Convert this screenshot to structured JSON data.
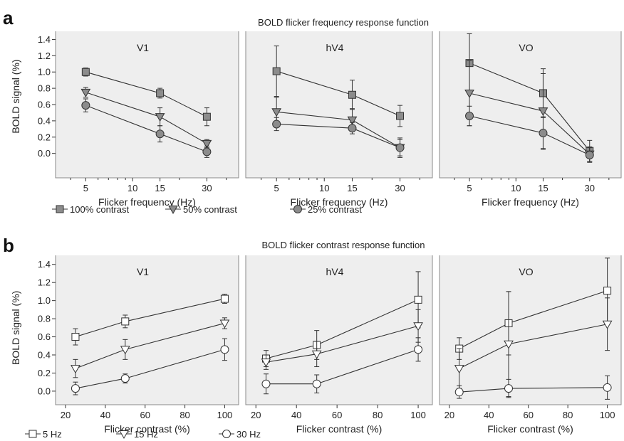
{
  "figure": {
    "panel_a_letter": "a",
    "panel_b_letter": "b",
    "panel_a_title": "BOLD flicker frequency response function",
    "panel_b_title": "BOLD flicker contrast response function"
  },
  "colors": {
    "plot_bg": "#eeeeee",
    "frame": "#8a8a8a",
    "line": "#333333",
    "filled_marker": "#8c8c8c",
    "open_marker": "#ffffff"
  },
  "chart_data": [
    {
      "type": "line",
      "panel": "a",
      "subtitle": "V1",
      "xlabel": "Flicker frequency (Hz)",
      "ylabel": "BOLD signal (%)",
      "x_scale": "log",
      "xlim": [
        3.2,
        48
      ],
      "ylim": [
        -0.3,
        1.5
      ],
      "xticks": [
        5,
        10,
        15,
        30
      ],
      "yticks": [
        0.0,
        0.2,
        0.4,
        0.6,
        0.8,
        1.0,
        1.2,
        1.4
      ],
      "x": [
        5,
        15,
        30
      ],
      "series": [
        {
          "name": "100% contrast",
          "marker": "square-filled",
          "values": [
            1.0,
            0.74,
            0.45
          ],
          "errors": [
            0.05,
            0.06,
            0.11
          ]
        },
        {
          "name": "50% contrast",
          "marker": "triangle-filled",
          "values": [
            0.75,
            0.45,
            0.12
          ],
          "errors": [
            0.06,
            0.11,
            0.05
          ]
        },
        {
          "name": "25% contrast",
          "marker": "circle-filled",
          "values": [
            0.59,
            0.24,
            0.02
          ],
          "errors": [
            0.08,
            0.1,
            0.07
          ]
        }
      ]
    },
    {
      "type": "line",
      "panel": "a",
      "subtitle": "hV4",
      "xlabel": "Flicker frequency (Hz)",
      "ylabel": "",
      "x_scale": "log",
      "xlim": [
        3.2,
        48
      ],
      "ylim": [
        -0.3,
        1.5
      ],
      "xticks": [
        5,
        10,
        15,
        30
      ],
      "x": [
        5,
        15,
        30
      ],
      "series": [
        {
          "name": "100% contrast",
          "marker": "square-filled",
          "values": [
            1.01,
            0.72,
            0.46
          ],
          "errors": [
            0.31,
            0.18,
            0.13
          ]
        },
        {
          "name": "50% contrast",
          "marker": "triangle-filled",
          "values": [
            0.51,
            0.41,
            0.07
          ],
          "errors": [
            0.18,
            0.14,
            0.12
          ]
        },
        {
          "name": "25% contrast",
          "marker": "circle-filled",
          "values": [
            0.36,
            0.31,
            0.07
          ],
          "errors": [
            0.08,
            0.07,
            0.1
          ]
        }
      ]
    },
    {
      "type": "line",
      "panel": "a",
      "subtitle": "VO",
      "xlabel": "Flicker frequency (Hz)",
      "ylabel": "",
      "x_scale": "log",
      "xlim": [
        3.2,
        48
      ],
      "ylim": [
        -0.3,
        1.5
      ],
      "xticks": [
        5,
        10,
        15,
        30
      ],
      "x": [
        5,
        15,
        30
      ],
      "series": [
        {
          "name": "100% contrast",
          "marker": "square-filled",
          "values": [
            1.11,
            0.74,
            0.03
          ],
          "errors": [
            0.36,
            0.3,
            0.13
          ]
        },
        {
          "name": "50% contrast",
          "marker": "triangle-filled",
          "values": [
            0.74,
            0.52,
            -0.01
          ],
          "errors": [
            0.4,
            0.46,
            0.09
          ]
        },
        {
          "name": "25% contrast",
          "marker": "circle-filled",
          "values": [
            0.46,
            0.25,
            -0.02
          ],
          "errors": [
            0.12,
            0.2,
            0.09
          ]
        }
      ]
    },
    {
      "type": "line",
      "panel": "b",
      "subtitle": "V1",
      "xlabel": "Flicker contrast (%)",
      "ylabel": "BOLD signal (%)",
      "xlim": [
        15,
        107
      ],
      "ylim": [
        -0.15,
        1.5
      ],
      "xticks": [
        20,
        40,
        60,
        80,
        100
      ],
      "yticks": [
        0.0,
        0.2,
        0.4,
        0.6,
        0.8,
        1.0,
        1.2,
        1.4
      ],
      "x": [
        25,
        50,
        100
      ],
      "series": [
        {
          "name": "5 Hz",
          "marker": "square-open",
          "values": [
            0.6,
            0.77,
            1.02
          ],
          "errors": [
            0.09,
            0.07,
            0.05
          ]
        },
        {
          "name": "15 Hz",
          "marker": "triangle-open",
          "values": [
            0.25,
            0.46,
            0.75
          ],
          "errors": [
            0.1,
            0.11,
            0.06
          ]
        },
        {
          "name": "30 Hz",
          "marker": "circle-open",
          "values": [
            0.03,
            0.14,
            0.46
          ],
          "errors": [
            0.07,
            0.05,
            0.12
          ]
        }
      ]
    },
    {
      "type": "line",
      "panel": "b",
      "subtitle": "hV4",
      "xlabel": "Flicker contrast (%)",
      "ylabel": "",
      "xlim": [
        15,
        107
      ],
      "ylim": [
        -0.15,
        1.5
      ],
      "xticks": [
        20,
        40,
        60,
        80,
        100
      ],
      "x": [
        25,
        50,
        100
      ],
      "series": [
        {
          "name": "5 Hz",
          "marker": "square-open",
          "values": [
            0.36,
            0.51,
            1.01
          ],
          "errors": [
            0.09,
            0.16,
            0.31
          ]
        },
        {
          "name": "15 Hz",
          "marker": "triangle-open",
          "values": [
            0.32,
            0.41,
            0.72
          ],
          "errors": [
            0.08,
            0.14,
            0.18
          ]
        },
        {
          "name": "30 Hz",
          "marker": "circle-open",
          "values": [
            0.08,
            0.08,
            0.46
          ],
          "errors": [
            0.11,
            0.1,
            0.13
          ]
        }
      ]
    },
    {
      "type": "line",
      "panel": "b",
      "subtitle": "VO",
      "xlabel": "Flicker contrast (%)",
      "ylabel": "",
      "xlim": [
        15,
        107
      ],
      "ylim": [
        -0.15,
        1.5
      ],
      "xticks": [
        20,
        40,
        60,
        80,
        100
      ],
      "x": [
        25,
        50,
        100
      ],
      "series": [
        {
          "name": "5 Hz",
          "marker": "square-open",
          "values": [
            0.47,
            0.75,
            1.11
          ],
          "errors": [
            0.12,
            0.35,
            0.36
          ]
        },
        {
          "name": "15 Hz",
          "marker": "triangle-open",
          "values": [
            0.25,
            0.52,
            0.74
          ],
          "errors": [
            0.22,
            0.58,
            0.29
          ]
        },
        {
          "name": "30 Hz",
          "marker": "circle-open",
          "values": [
            -0.01,
            0.03,
            0.04
          ],
          "errors": [
            0.07,
            0.1,
            0.13
          ]
        }
      ]
    }
  ]
}
